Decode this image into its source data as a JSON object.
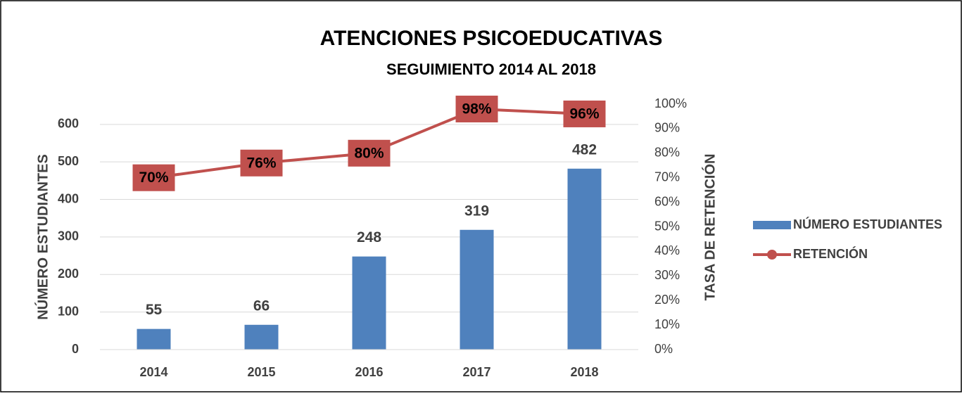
{
  "chart_data": {
    "type": "bar",
    "title": "ATENCIONES PSICOEDUCATIVAS",
    "subtitle": "SEGUIMIENTO 2014 AL 2018",
    "y_label": "NÚMERO ESTUDIANTES",
    "y2_label": "TASA DE  RETENCIÓN",
    "categories": [
      "2014",
      "2015",
      "2016",
      "2017",
      "2018"
    ],
    "series": [
      {
        "name": "NÚMERO ESTUDIANTES",
        "type": "bar",
        "color": "#4f81bd",
        "values": [
          55,
          66,
          248,
          319,
          482
        ]
      },
      {
        "name": "RETENCIÓN",
        "type": "line",
        "axis": "y2",
        "color": "#c0504d",
        "values": [
          70,
          76,
          80,
          98,
          96
        ],
        "value_labels": [
          "70%",
          "76%",
          "80%",
          "98%",
          "96%"
        ]
      }
    ],
    "ylim": [
      0,
      654
    ],
    "yticks": [
      0,
      100,
      200,
      300,
      400,
      500,
      600
    ],
    "y2lim": [
      0,
      100
    ],
    "y2ticks": [
      {
        "value": 0,
        "label": "0%"
      },
      {
        "value": 10,
        "label": "10%"
      },
      {
        "value": 20,
        "label": "20%"
      },
      {
        "value": 30,
        "label": "30%"
      },
      {
        "value": 40,
        "label": "40%"
      },
      {
        "value": 50,
        "label": "50%"
      },
      {
        "value": 60,
        "label": "60%"
      },
      {
        "value": 70,
        "label": "70%"
      },
      {
        "value": 80,
        "label": "80%"
      },
      {
        "value": 90,
        "label": "90%"
      },
      {
        "value": 100,
        "label": "100%"
      }
    ],
    "grid": true,
    "legend": "right"
  }
}
